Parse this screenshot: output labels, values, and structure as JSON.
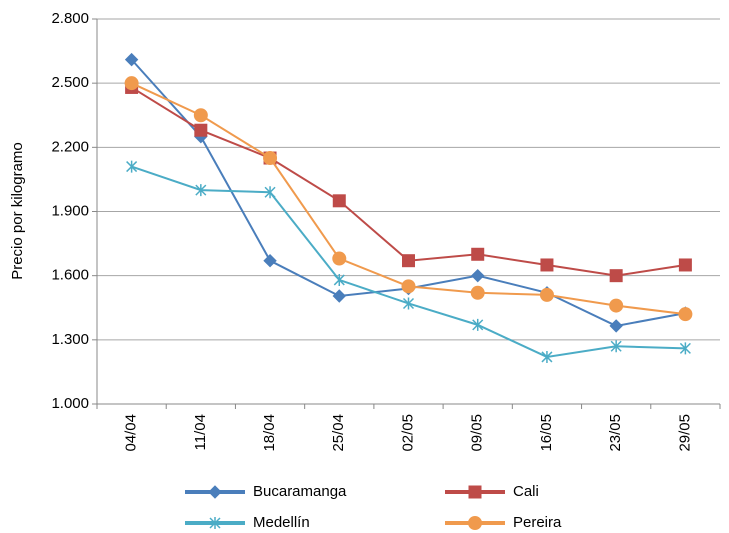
{
  "chart_data": {
    "type": "line",
    "y_label": "Precio por kilogramo",
    "categories": [
      "04/04",
      "11/04",
      "18/04",
      "25/04",
      "02/05",
      "09/05",
      "16/05",
      "23/05",
      "29/05"
    ],
    "series": [
      {
        "name": "Bucaramanga",
        "color": "#4a7ebb",
        "marker": "diamond",
        "values": [
          2610,
          2250,
          1670,
          1505,
          1540,
          1600,
          1520,
          1365,
          1425
        ]
      },
      {
        "name": "Cali",
        "color": "#be4b48",
        "marker": "square",
        "values": [
          2480,
          2280,
          2150,
          1950,
          1670,
          1700,
          1650,
          1600,
          1650
        ]
      },
      {
        "name": "Medellín",
        "color": "#4bacc6",
        "marker": "asterisk",
        "values": [
          2110,
          2000,
          1990,
          1580,
          1470,
          1370,
          1220,
          1270,
          1260
        ]
      },
      {
        "name": "Pereira",
        "color": "#f09a4d",
        "marker": "circle",
        "values": [
          2500,
          2350,
          2150,
          1680,
          1550,
          1520,
          1510,
          1460,
          1420
        ]
      }
    ],
    "ylim": [
      1000,
      2800
    ],
    "yticks": [
      {
        "value": 1000,
        "label": "1.000"
      },
      {
        "value": 1300,
        "label": "1.300"
      },
      {
        "value": 1600,
        "label": "1.600"
      },
      {
        "value": 1900,
        "label": "1.900"
      },
      {
        "value": 2200,
        "label": "2.200"
      },
      {
        "value": 2500,
        "label": "2.500"
      },
      {
        "value": 2800,
        "label": "2.800"
      }
    ],
    "grid": true,
    "legend": "bottom"
  }
}
